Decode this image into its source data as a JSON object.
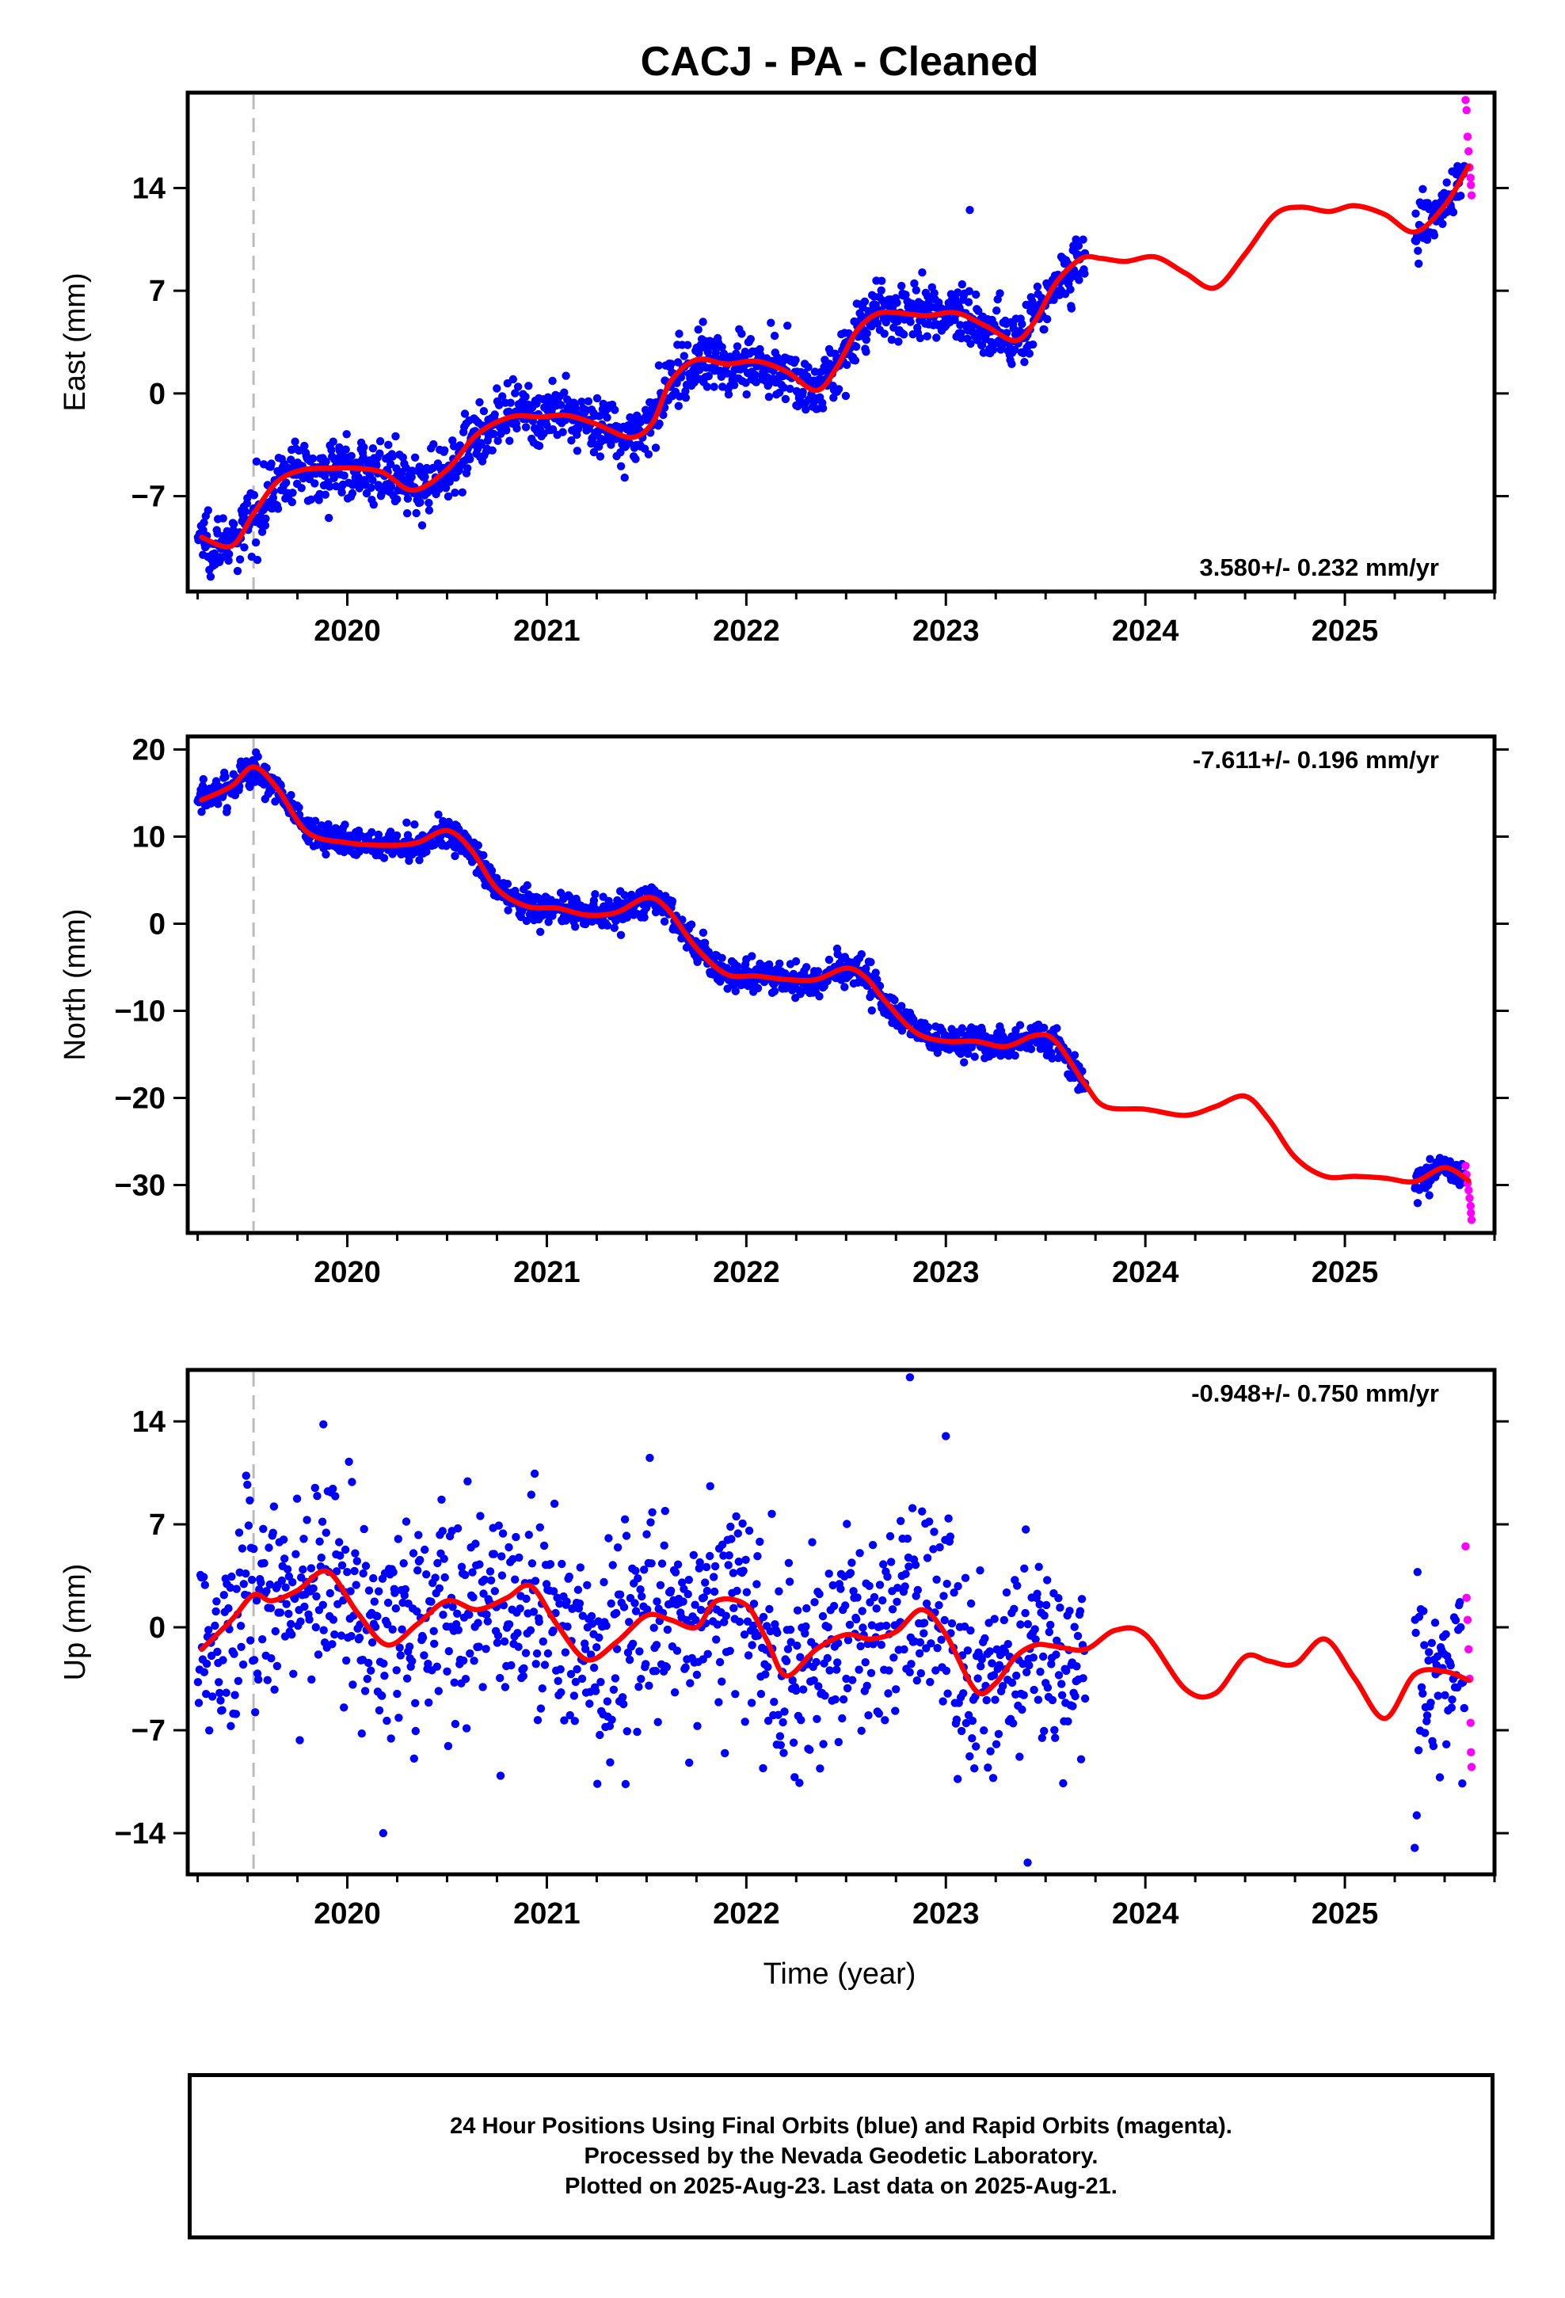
{
  "page": {
    "title": "CACJ  - PA - Cleaned",
    "x_axis_label": "Time (year)",
    "footer": [
      "24 Hour Positions Using Final Orbits (blue) and Rapid Orbits (magenta).",
      "Processed by the Nevada Geodetic Laboratory.",
      "Plotted on 2025-Aug-23. Last data on 2025-Aug-21."
    ]
  },
  "colors": {
    "final_orbits": "#0000ff",
    "rapid_orbits": "#ff00ff",
    "model_fit": "#ff0000",
    "event_line": "#bbbbbb"
  },
  "chart_data": [
    {
      "type": "scatter",
      "ylabel": "East (mm)",
      "xlim": [
        2019.2,
        2025.75
      ],
      "ylim": [
        -13.5,
        20.5
      ],
      "xticks": [
        2020,
        2021,
        2022,
        2023,
        2024,
        2025
      ],
      "yticks": [
        -7,
        0,
        7,
        14
      ],
      "annotation": "3.580+/- 0.232 mm/yr",
      "annotation_position": "bottom-right",
      "event_line_x": 2019.53,
      "fit_curve": {
        "x": [
          2019.27,
          2019.42,
          2019.53,
          2019.65,
          2019.78,
          2019.93,
          2020.05,
          2020.18,
          2020.33,
          2020.5,
          2020.65,
          2020.82,
          2020.97,
          2021.1,
          2021.25,
          2021.42,
          2021.53,
          2021.62,
          2021.75,
          2021.9,
          2022.05,
          2022.2,
          2022.35,
          2022.45,
          2022.55,
          2022.65,
          2022.75,
          2022.9,
          2023.05,
          2023.2,
          2023.35,
          2023.45,
          2023.55,
          2023.68,
          2023.78,
          2023.9,
          2024.05,
          2024.2,
          2024.35,
          2024.5,
          2024.65,
          2024.78,
          2024.92,
          2025.05,
          2025.2,
          2025.35,
          2025.5,
          2025.62
        ],
        "y": [
          -9.8,
          -10.4,
          -8.2,
          -6.0,
          -5.2,
          -5.1,
          -5.1,
          -5.4,
          -6.6,
          -5.2,
          -2.8,
          -1.6,
          -1.6,
          -1.5,
          -2.1,
          -3.0,
          -2.0,
          0.8,
          2.3,
          2.0,
          2.2,
          1.5,
          0.2,
          1.7,
          4.2,
          5.4,
          5.5,
          5.3,
          5.5,
          4.6,
          3.6,
          5.0,
          7.5,
          9.2,
          9.2,
          9.0,
          9.3,
          8.2,
          7.2,
          9.5,
          12.2,
          12.7,
          12.4,
          12.8,
          12.2,
          11.0,
          12.8,
          15.5
        ]
      },
      "final_orbit_segments": [
        {
          "x_start": 2019.25,
          "x_end": 2023.7,
          "n_points": 1450,
          "scatter_sd": 1.0
        },
        {
          "x_start": 2025.35,
          "x_end": 2025.6,
          "n_points": 70,
          "scatter_sd": 1.0
        }
      ],
      "rapid_orbit_points": {
        "x": [
          2025.605,
          2025.61,
          2025.615,
          2025.62,
          2025.625,
          2025.63,
          2025.632,
          2025.635
        ],
        "y": [
          20.0,
          19.3,
          17.5,
          16.5,
          15.4,
          14.7,
          14.2,
          13.5
        ]
      },
      "peak_points": [
        {
          "x": 2023.12,
          "y": 12.5
        },
        {
          "x": 2019.45,
          "y": -12.1
        }
      ]
    },
    {
      "type": "scatter",
      "ylabel": "North (mm)",
      "xlim": [
        2019.2,
        2025.75
      ],
      "ylim": [
        -35.5,
        21.5
      ],
      "xticks": [
        2020,
        2021,
        2022,
        2023,
        2024,
        2025
      ],
      "yticks": [
        -30,
        -20,
        -10,
        0,
        10,
        20
      ],
      "annotation": "-7.611+/- 0.196 mm/yr",
      "annotation_position": "top-right",
      "event_line_x": 2019.53,
      "fit_curve": {
        "x": [
          2019.27,
          2019.42,
          2019.53,
          2019.65,
          2019.8,
          2020.0,
          2020.2,
          2020.35,
          2020.5,
          2020.62,
          2020.75,
          2020.9,
          2021.05,
          2021.2,
          2021.35,
          2021.5,
          2021.6,
          2021.75,
          2021.9,
          2022.05,
          2022.2,
          2022.35,
          2022.5,
          2022.6,
          2022.7,
          2022.85,
          2023.0,
          2023.15,
          2023.3,
          2023.45,
          2023.55,
          2023.7,
          2023.8,
          2024.0,
          2024.2,
          2024.35,
          2024.5,
          2024.62,
          2024.75,
          2024.9,
          2025.05,
          2025.2,
          2025.35,
          2025.5,
          2025.62
        ],
        "y": [
          14.2,
          15.8,
          18.0,
          15.5,
          10.5,
          9.3,
          9.0,
          9.3,
          10.7,
          8.5,
          4.0,
          2.0,
          1.8,
          1.0,
          1.3,
          3.0,
          1.8,
          -2.8,
          -5.8,
          -6.0,
          -6.4,
          -6.4,
          -5.1,
          -6.2,
          -9.0,
          -12.5,
          -13.5,
          -13.5,
          -14.1,
          -12.8,
          -13.5,
          -18.5,
          -21.0,
          -21.3,
          -22.0,
          -21.0,
          -19.8,
          -22.5,
          -26.8,
          -29.0,
          -29.0,
          -29.2,
          -29.6,
          -28.0,
          -29.5
        ]
      },
      "final_orbit_segments": [
        {
          "x_start": 2019.25,
          "x_end": 2023.7,
          "n_points": 1450,
          "scatter_sd": 0.9
        },
        {
          "x_start": 2025.35,
          "x_end": 2025.6,
          "n_points": 70,
          "scatter_sd": 0.9
        }
      ],
      "rapid_orbit_points": {
        "x": [
          2025.605,
          2025.61,
          2025.615,
          2025.62,
          2025.625,
          2025.63,
          2025.632,
          2025.635
        ],
        "y": [
          -27.8,
          -28.8,
          -29.8,
          -30.6,
          -31.5,
          -32.4,
          -33.2,
          -34.0
        ]
      },
      "peak_points": []
    },
    {
      "type": "scatter",
      "ylabel": "Up (mm)",
      "xlim": [
        2019.2,
        2025.75
      ],
      "ylim": [
        -16.8,
        17.5
      ],
      "xticks": [
        2020,
        2021,
        2022,
        2023,
        2024,
        2025
      ],
      "yticks": [
        -14,
        -7,
        0,
        7,
        14
      ],
      "annotation": "-0.948+/- 0.750 mm/yr",
      "annotation_position": "top-right",
      "event_line_x": 2019.53,
      "fit_curve": {
        "x": [
          2019.27,
          2019.42,
          2019.53,
          2019.62,
          2019.75,
          2019.9,
          2020.05,
          2020.2,
          2020.35,
          2020.5,
          2020.65,
          2020.8,
          2020.92,
          2021.05,
          2021.2,
          2021.35,
          2021.5,
          2021.62,
          2021.75,
          2021.85,
          2022.0,
          2022.1,
          2022.2,
          2022.35,
          2022.5,
          2022.62,
          2022.75,
          2022.88,
          2023.0,
          2023.15,
          2023.25,
          2023.35,
          2023.45,
          2023.55,
          2023.7,
          2023.85,
          2024.0,
          2024.2,
          2024.35,
          2024.5,
          2024.62,
          2024.75,
          2024.9,
          2025.05,
          2025.2,
          2025.35,
          2025.5,
          2025.62
        ],
        "y": [
          -1.5,
          0.5,
          2.2,
          1.8,
          2.5,
          3.8,
          1.0,
          -1.2,
          0.2,
          1.8,
          1.2,
          2.0,
          2.8,
          0.2,
          -2.2,
          -1.0,
          0.8,
          0.5,
          0.0,
          1.8,
          1.5,
          -0.8,
          -3.3,
          -1.5,
          -0.5,
          -0.8,
          -0.3,
          1.2,
          -0.5,
          -4.3,
          -3.8,
          -2.0,
          -1.2,
          -1.3,
          -1.5,
          -0.2,
          -0.5,
          -4.2,
          -4.5,
          -2.0,
          -2.3,
          -2.5,
          -0.8,
          -3.5,
          -6.2,
          -3.2,
          -3.0,
          -3.6
        ]
      },
      "final_orbit_segments": [
        {
          "x_start": 2019.25,
          "x_end": 2023.7,
          "n_points": 1100,
          "scatter_sd": 3.6
        },
        {
          "x_start": 2025.35,
          "x_end": 2025.6,
          "n_points": 60,
          "scatter_sd": 3.4
        }
      ],
      "rapid_orbit_points": {
        "x": [
          2025.605,
          2025.61,
          2025.615,
          2025.62,
          2025.625,
          2025.63,
          2025.632,
          2025.635
        ],
        "y": [
          5.5,
          2.0,
          0.5,
          -1.5,
          -3.5,
          -6.5,
          -8.5,
          -9.5
        ]
      },
      "peak_points": [
        {
          "x": 2022.82,
          "y": 17.0
        },
        {
          "x": 2023.41,
          "y": -16.0
        },
        {
          "x": 2020.18,
          "y": -14.0
        },
        {
          "x": 2019.88,
          "y": 13.8
        },
        {
          "x": 2023.0,
          "y": 13.0
        },
        {
          "x": 2025.35,
          "y": -15.0
        }
      ]
    }
  ]
}
